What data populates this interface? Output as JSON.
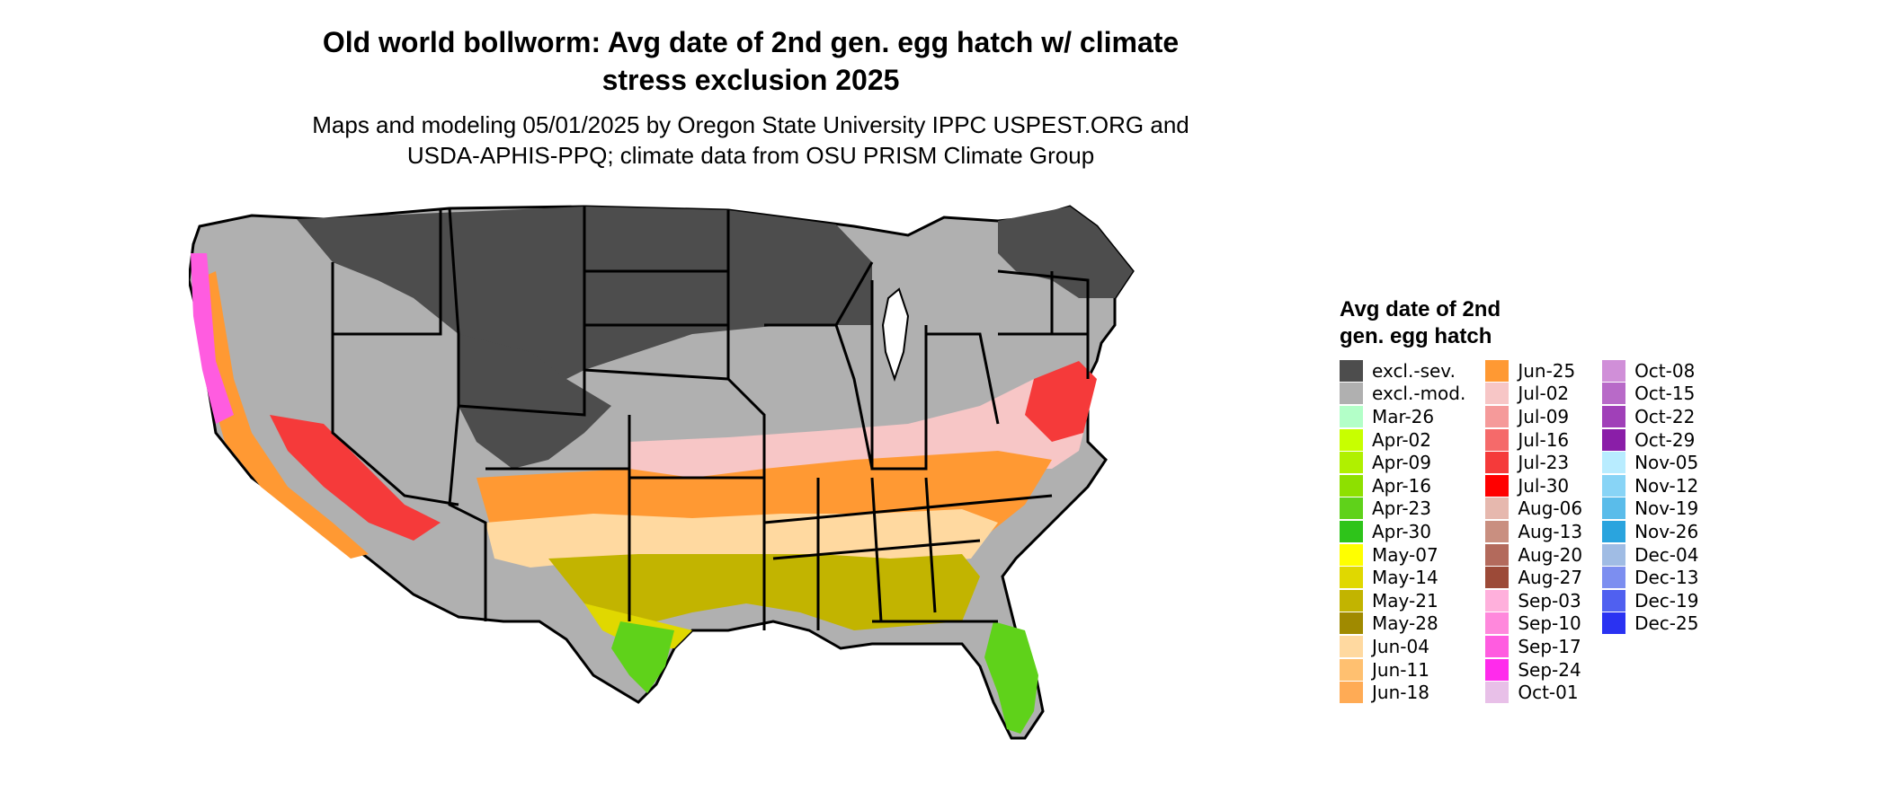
{
  "title": "Old world bollworm: Avg date of 2nd gen. egg hatch w/ climate stress exclusion 2025",
  "title_lines": [
    "Old world bollworm: Avg date of 2nd gen. egg hatch w/ climate",
    "stress exclusion 2025"
  ],
  "subtitle_lines": [
    "Maps and modeling 05/01/2025 by Oregon State University IPPC USPEST.ORG and",
    "USDA-APHIS-PPQ; climate data from OSU PRISM Climate Group"
  ],
  "legend": {
    "title_lines": [
      "Avg date of 2nd",
      "gen. egg hatch"
    ],
    "items": [
      {
        "label": "excl.-sev.",
        "color": "#4d4d4d"
      },
      {
        "label": "excl.-mod.",
        "color": "#b0b0b0"
      },
      {
        "label": "Mar-26",
        "color": "#b3ffc8"
      },
      {
        "label": "Apr-02",
        "color": "#c8ff00"
      },
      {
        "label": "Apr-09",
        "color": "#b0f000"
      },
      {
        "label": "Apr-16",
        "color": "#8ee000"
      },
      {
        "label": "Apr-23",
        "color": "#5fd21a"
      },
      {
        "label": "Apr-30",
        "color": "#2ec41a"
      },
      {
        "label": "May-07",
        "color": "#ffff00"
      },
      {
        "label": "May-14",
        "color": "#e0d800"
      },
      {
        "label": "May-21",
        "color": "#c2b400"
      },
      {
        "label": "May-28",
        "color": "#a08a00"
      },
      {
        "label": "Jun-04",
        "color": "#ffd9a0"
      },
      {
        "label": "Jun-11",
        "color": "#ffc070"
      },
      {
        "label": "Jun-18",
        "color": "#ffab55"
      },
      {
        "label": "Jun-25",
        "color": "#ff9933"
      },
      {
        "label": "Jul-02",
        "color": "#f7c6c6"
      },
      {
        "label": "Jul-09",
        "color": "#f59a9a"
      },
      {
        "label": "Jul-16",
        "color": "#f56a6a"
      },
      {
        "label": "Jul-23",
        "color": "#f53a3a"
      },
      {
        "label": "Jul-30",
        "color": "#ff0000"
      },
      {
        "label": "Aug-06",
        "color": "#e6b8ae"
      },
      {
        "label": "Aug-13",
        "color": "#c98f80"
      },
      {
        "label": "Aug-20",
        "color": "#b36a5c"
      },
      {
        "label": "Aug-27",
        "color": "#9c4a38"
      },
      {
        "label": "Sep-03",
        "color": "#ffb0dc"
      },
      {
        "label": "Sep-10",
        "color": "#ff88dc"
      },
      {
        "label": "Sep-17",
        "color": "#ff5ce0"
      },
      {
        "label": "Sep-24",
        "color": "#ff2bec"
      },
      {
        "label": "Oct-01",
        "color": "#e8c0e8"
      },
      {
        "label": "Oct-08",
        "color": "#d08fd8"
      },
      {
        "label": "Oct-15",
        "color": "#b86ac8"
      },
      {
        "label": "Oct-22",
        "color": "#a040b8"
      },
      {
        "label": "Oct-29",
        "color": "#8a1ea8"
      },
      {
        "label": "Nov-05",
        "color": "#b8ecff"
      },
      {
        "label": "Nov-12",
        "color": "#88d4f6"
      },
      {
        "label": "Nov-19",
        "color": "#5abcea"
      },
      {
        "label": "Nov-26",
        "color": "#2aa4de"
      },
      {
        "label": "Dec-04",
        "color": "#a0bce4"
      },
      {
        "label": "Dec-13",
        "color": "#7c8ef0"
      },
      {
        "label": "Dec-19",
        "color": "#5060f0"
      },
      {
        "label": "Dec-25",
        "color": "#2a32f2"
      }
    ]
  }
}
